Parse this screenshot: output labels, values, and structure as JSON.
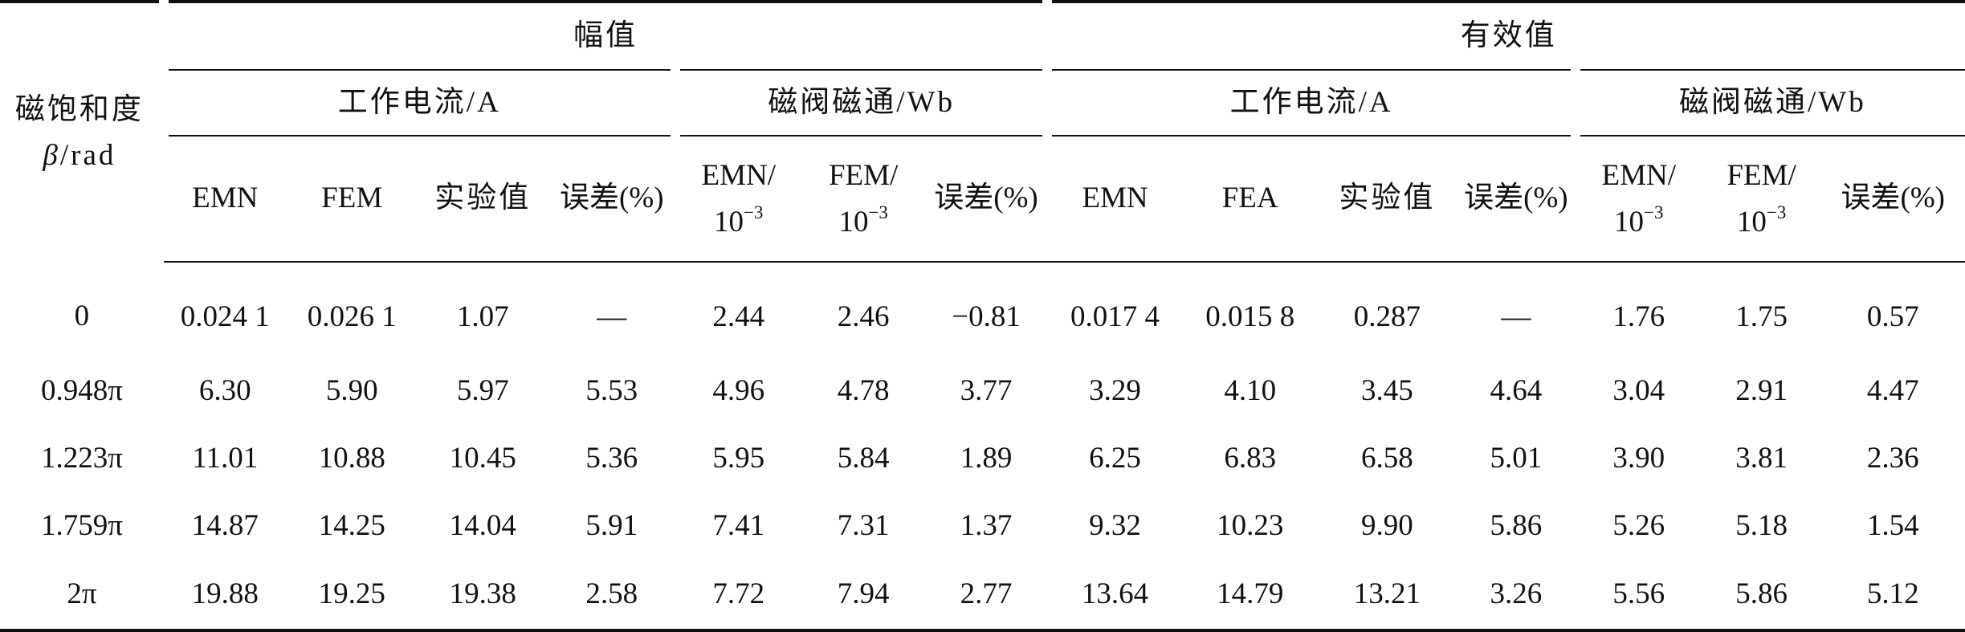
{
  "table": {
    "row_header": {
      "line1": "磁饱和度",
      "symbol": "β",
      "unit": "/rad"
    },
    "groups": [
      "幅值",
      "有效值"
    ],
    "subgroups": [
      "工作电流/A",
      "磁阀磁通/Wb",
      "工作电流/A",
      "磁阀磁通/Wb"
    ],
    "col_amp_current": [
      "EMN",
      "FEM",
      "实验值",
      "误差(%)"
    ],
    "col_amp_flux": [
      {
        "name": "EMN/",
        "scale_base": "10",
        "scale_exp": "−3"
      },
      {
        "name": "FEM/",
        "scale_base": "10",
        "scale_exp": "−3"
      },
      {
        "name": "误差(%)"
      }
    ],
    "col_rms_current": [
      "EMN",
      "FEA",
      "实验值",
      "误差(%)"
    ],
    "col_rms_flux": [
      {
        "name": "EMN/",
        "scale_base": "10",
        "scale_exp": "−3"
      },
      {
        "name": "FEM/",
        "scale_base": "10",
        "scale_exp": "−3"
      },
      {
        "name": "误差(%)"
      }
    ],
    "rows": [
      [
        "0",
        "0.024 1",
        "0.026 1",
        "1.07",
        "—",
        "2.44",
        "2.46",
        "−0.81",
        "0.017 4",
        "0.015 8",
        "0.287",
        "—",
        "1.76",
        "1.75",
        "0.57"
      ],
      [
        "0.948π",
        "6.30",
        "5.90",
        "5.97",
        "5.53",
        "4.96",
        "4.78",
        "3.77",
        "3.29",
        "4.10",
        "3.45",
        "4.64",
        "3.04",
        "2.91",
        "4.47"
      ],
      [
        "1.223π",
        "11.01",
        "10.88",
        "10.45",
        "5.36",
        "5.95",
        "5.84",
        "1.89",
        "6.25",
        "6.83",
        "6.58",
        "5.01",
        "3.90",
        "3.81",
        "2.36"
      ],
      [
        "1.759π",
        "14.87",
        "14.25",
        "14.04",
        "5.91",
        "7.41",
        "7.31",
        "1.37",
        "9.32",
        "10.23",
        "9.90",
        "5.86",
        "5.26",
        "5.18",
        "1.54"
      ],
      [
        "2π",
        "19.88",
        "19.25",
        "19.38",
        "2.58",
        "7.72",
        "7.94",
        "2.77",
        "13.64",
        "14.79",
        "13.21",
        "3.26",
        "5.56",
        "5.86",
        "5.12"
      ]
    ]
  }
}
